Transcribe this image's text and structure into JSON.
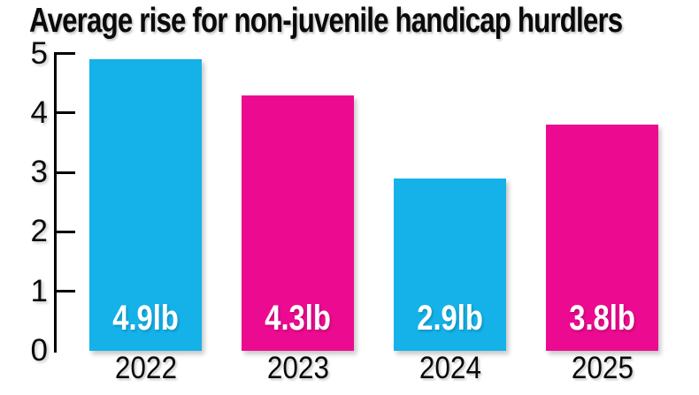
{
  "title": "Average rise for non-juvenile handicap hurdlers",
  "colors": {
    "background": "#ffffff",
    "cyan": "#14b2e8",
    "magenta": "#ec0a90",
    "axis": "#000000",
    "text": "#0a0a0a",
    "bar_label_text": "#ffffff"
  },
  "chart_data": {
    "type": "bar",
    "title": "Average rise for non-juvenile handicap hurdlers",
    "categories": [
      "2022",
      "2023",
      "2024",
      "2025"
    ],
    "values": [
      4.9,
      4.3,
      2.9,
      3.8
    ],
    "bar_labels": [
      "4.9lb",
      "4.3lb",
      "2.9lb",
      "3.8lb"
    ],
    "bar_colors": [
      "#14b2e8",
      "#ec0a90",
      "#14b2e8",
      "#ec0a90"
    ],
    "unit": "lb",
    "xlabel": "",
    "ylabel": "",
    "ylim": [
      0,
      5
    ],
    "yticks": [
      0,
      1,
      2,
      3,
      4,
      5
    ],
    "grid": false,
    "legend": null,
    "tick_style": "right-pointing ticks on y-axis, no x-axis line"
  }
}
